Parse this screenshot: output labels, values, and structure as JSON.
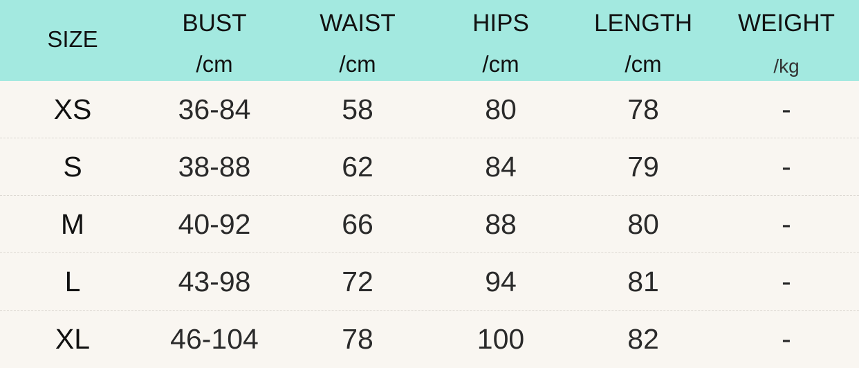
{
  "colors": {
    "header_bg": "#a3e9e0",
    "body_bg": "#f9f6f1",
    "separator": "#dcd8d2"
  },
  "headers": [
    {
      "label": "SIZE",
      "unit": ""
    },
    {
      "label": "BUST",
      "unit": "/cm"
    },
    {
      "label": "WAIST",
      "unit": "/cm"
    },
    {
      "label": "HIPS",
      "unit": "/cm"
    },
    {
      "label": "LENGTH",
      "unit": "/cm"
    },
    {
      "label": "WEIGHT",
      "unit": "/kg"
    }
  ],
  "rows": [
    [
      "XS",
      "36-84",
      "58",
      "80",
      "78",
      "-"
    ],
    [
      "S",
      "38-88",
      "62",
      "84",
      "79",
      "-"
    ],
    [
      "M",
      "40-92",
      "66",
      "88",
      "80",
      "-"
    ],
    [
      "L",
      "43-98",
      "72",
      "94",
      "81",
      "-"
    ],
    [
      "XL",
      "46-104",
      "78",
      "100",
      "82",
      "-"
    ]
  ]
}
